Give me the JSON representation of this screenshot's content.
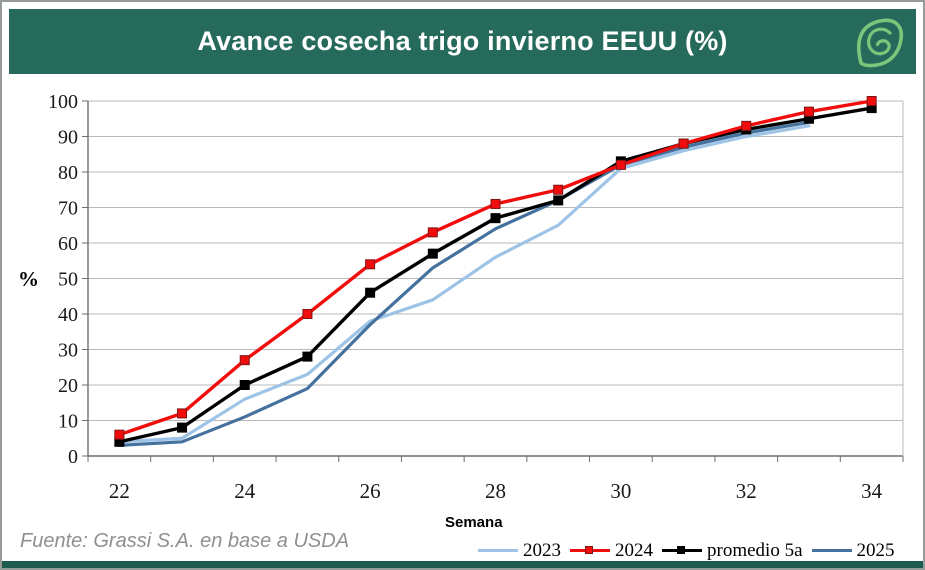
{
  "header": {
    "title": "Avance cosecha trigo invierno EEUU (%)",
    "logo_icon": "grassi-leaf-logo",
    "bar_color": "#266a5c",
    "logo_color": "#7cc67c"
  },
  "footer": {
    "source": "Fuente: Grassi S.A. en base a USDA"
  },
  "chart_data": {
    "type": "line",
    "title": "Avance cosecha trigo invierno EEUU (%)",
    "xlabel": "Semana",
    "ylabel": "%",
    "x": [
      22,
      23,
      24,
      25,
      26,
      27,
      28,
      29,
      30,
      31,
      32,
      33,
      34
    ],
    "x_tick_labels": [
      22,
      24,
      26,
      28,
      30,
      32,
      34
    ],
    "ylim": [
      0,
      100
    ],
    "y_ticks": [
      0,
      10,
      20,
      30,
      40,
      50,
      60,
      70,
      80,
      90,
      100
    ],
    "grid": true,
    "legend_position": "bottom",
    "axis_color": "#6e6e6e",
    "grid_color": "#b9b9b9",
    "series": [
      {
        "name": "2023",
        "color": "#9dc3e6",
        "marker": "none",
        "line_width": 3.2,
        "draw_order": 0,
        "values": [
          4,
          5,
          16,
          23,
          38,
          44,
          56,
          65,
          81,
          86,
          90,
          93,
          null
        ]
      },
      {
        "name": "2024",
        "color": "#f20d0d",
        "marker": "square",
        "marker_stroke": "#7f1416",
        "line_width": 3.4,
        "draw_order": 3,
        "values": [
          6,
          12,
          27,
          40,
          54,
          63,
          71,
          75,
          82,
          88,
          93,
          97,
          100
        ]
      },
      {
        "name": "promedio 5a",
        "color": "#000000",
        "marker": "square",
        "marker_stroke": "#000000",
        "line_width": 3.4,
        "draw_order": 2,
        "values": [
          4,
          8,
          20,
          28,
          46,
          57,
          67,
          72,
          83,
          88,
          92,
          95,
          98
        ]
      },
      {
        "name": "2025",
        "color": "#44719e",
        "marker": "none",
        "line_width": 3.2,
        "draw_order": 1,
        "values": [
          3,
          4,
          11,
          19,
          37,
          53,
          64,
          72,
          82,
          87,
          91,
          94,
          null
        ]
      }
    ]
  }
}
